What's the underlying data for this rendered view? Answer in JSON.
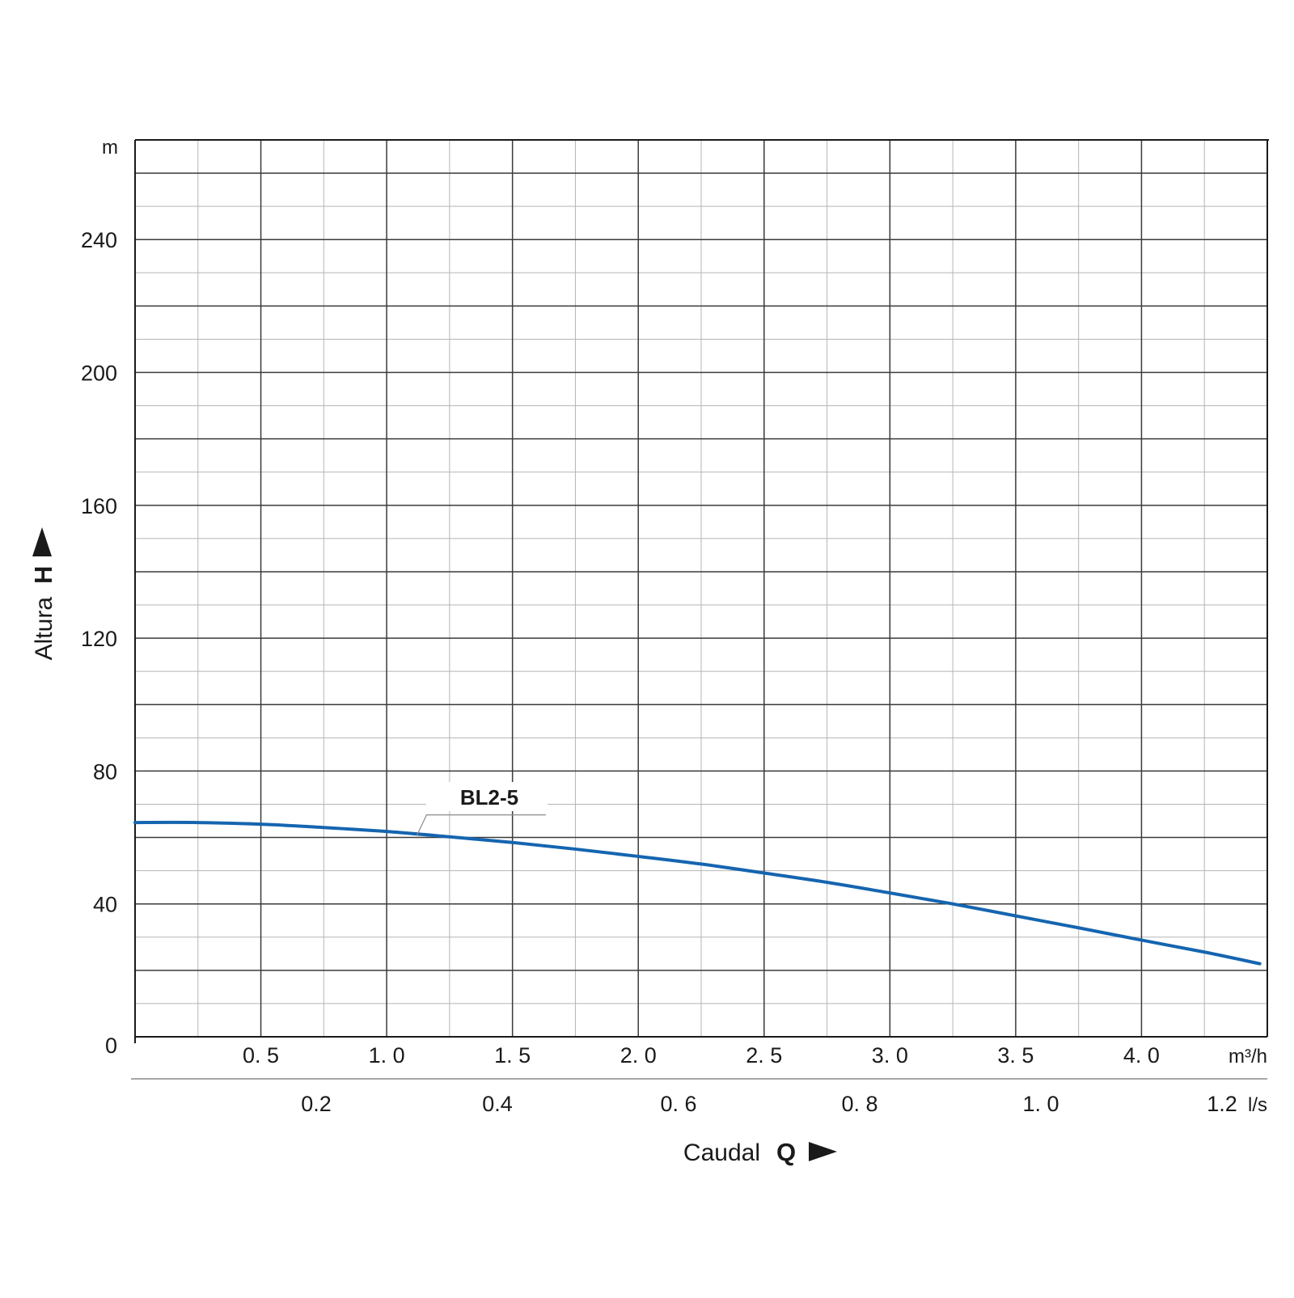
{
  "chart_data": {
    "type": "line",
    "title": "",
    "xlabel": "Caudal",
    "xsymbol": "Q",
    "xunit": "m³/h",
    "xlim": [
      0,
      4.5
    ],
    "xticks": [
      "0. 5",
      "1. 0",
      "1. 5",
      "2. 0",
      "2. 5",
      "3. 0",
      "3. 5",
      "4. 0"
    ],
    "xtick_values": [
      0.5,
      1.0,
      1.5,
      2.0,
      2.5,
      3.0,
      3.5,
      4.0
    ],
    "secondary_x": {
      "unit": "l/s",
      "ticks": [
        "0.2",
        "0.4",
        "0. 6",
        "0. 8",
        "1. 0",
        "1.2"
      ],
      "tick_values": [
        0.2,
        0.4,
        0.6,
        0.8,
        1.0,
        1.2
      ]
    },
    "ylabel": "Altura",
    "ysymbol": "H",
    "yunit": "m",
    "ylim": [
      0,
      270
    ],
    "yticks": [
      "0",
      "40",
      "80",
      "120",
      "160",
      "200",
      "240"
    ],
    "ytick_values": [
      0,
      40,
      80,
      120,
      160,
      200,
      240
    ],
    "grid": true,
    "series": [
      {
        "name": "BL2-5",
        "color": "#1565b0",
        "x": [
          0.0,
          0.25,
          0.5,
          0.75,
          1.0,
          1.25,
          1.5,
          1.75,
          2.0,
          2.25,
          2.5,
          2.75,
          3.0,
          3.25,
          3.5,
          3.75,
          4.0,
          4.25,
          4.47
        ],
        "y": [
          64.5,
          64.5,
          64.0,
          63.0,
          61.8,
          60.2,
          58.5,
          56.5,
          54.3,
          52.0,
          49.3,
          46.5,
          43.3,
          40.0,
          36.4,
          32.8,
          29.1,
          25.5,
          22.0
        ]
      }
    ]
  }
}
